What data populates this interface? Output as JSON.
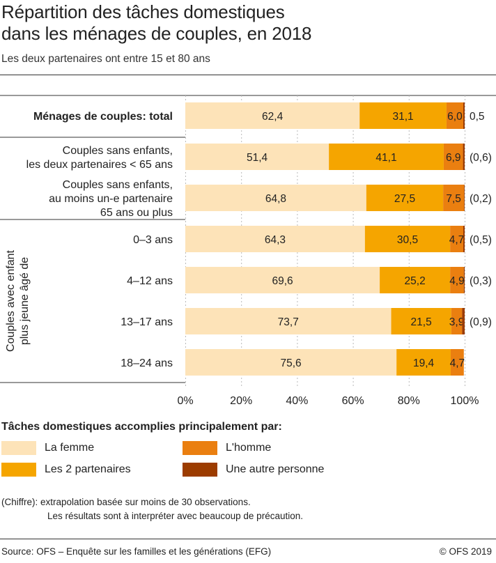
{
  "title_line1": "Répartition des tâches domestiques",
  "title_line2": "dans les ménages de couples, en 2018",
  "subtitle": "Les deux partenaires ont entre 15 et 80 ans",
  "colors": {
    "la_femme": "#fde3b8",
    "les_2_partenaires": "#f5a500",
    "l_homme": "#ea7f10",
    "une_autre_personne": "#9c3c00"
  },
  "chart_data": {
    "type": "bar",
    "orientation": "horizontal",
    "stacked": true,
    "xlim": [
      0,
      100
    ],
    "x_ticks": [
      "0%",
      "20%",
      "40%",
      "60%",
      "80%",
      "100%"
    ],
    "group_label": "Couples avec enfant plus jeune âgé de",
    "categories": [
      "Ménages de couples: total",
      "Couples sans enfants, les deux partenaires < 65 ans",
      "Couples sans enfants, au moins un-e partenaire 65 ans ou plus",
      "0–3 ans",
      "4–12 ans",
      "13–17 ans",
      "18–24 ans"
    ],
    "category_lines": [
      [
        "Ménages de couples: total"
      ],
      [
        "Couples sans enfants,",
        "les deux partenaires < 65 ans"
      ],
      [
        "Couples sans enfants,",
        "au moins un-e partenaire",
        "65 ans ou plus"
      ],
      [
        "0–3 ans"
      ],
      [
        "4–12 ans"
      ],
      [
        "13–17 ans"
      ],
      [
        "18–24 ans"
      ]
    ],
    "series": [
      {
        "name": "La femme",
        "values": [
          62.4,
          51.4,
          64.8,
          64.3,
          69.6,
          73.7,
          75.6
        ]
      },
      {
        "name": "Les 2 partenaires",
        "values": [
          31.1,
          41.1,
          27.5,
          30.5,
          25.2,
          21.5,
          19.4
        ]
      },
      {
        "name": "L'homme",
        "values": [
          6.0,
          6.9,
          7.5,
          4.7,
          4.9,
          3.9,
          4.7
        ]
      },
      {
        "name": "Une autre personne",
        "values": [
          0.5,
          0.6,
          0.2,
          0.5,
          0.3,
          0.9,
          null
        ]
      }
    ],
    "data_labels": [
      [
        "62,4",
        "51,4",
        "64,8",
        "64,3",
        "69,6",
        "73,7",
        "75,6"
      ],
      [
        "31,1",
        "41,1",
        "27,5",
        "30,5",
        "25,2",
        "21,5",
        "19,4"
      ],
      [
        "6,0",
        "6,9",
        "7,5",
        "4,7",
        "4,9",
        "3,9",
        "4,7"
      ],
      [
        "0,5",
        "(0,6)",
        "(0,2)",
        "(0,5)",
        "(0,3)",
        "(0,9)",
        ""
      ]
    ]
  },
  "legend": {
    "title": "Tâches domestiques accomplies principalement par:",
    "items": [
      {
        "label": "La femme",
        "color": "#fde3b8"
      },
      {
        "label": "L'homme",
        "color": "#ea7f10"
      },
      {
        "label": "Les 2 partenaires",
        "color": "#f5a500"
      },
      {
        "label": "Une autre personne",
        "color": "#9c3c00"
      }
    ]
  },
  "note_line1": "(Chiffre): extrapolation basée sur moins de 30 observations.",
  "note_line2": "Les résultats sont à interpréter avec beaucoup de précaution.",
  "source": "Source: OFS – Enquête sur les familles et les générations (EFG)",
  "copyright": "© OFS 2019"
}
